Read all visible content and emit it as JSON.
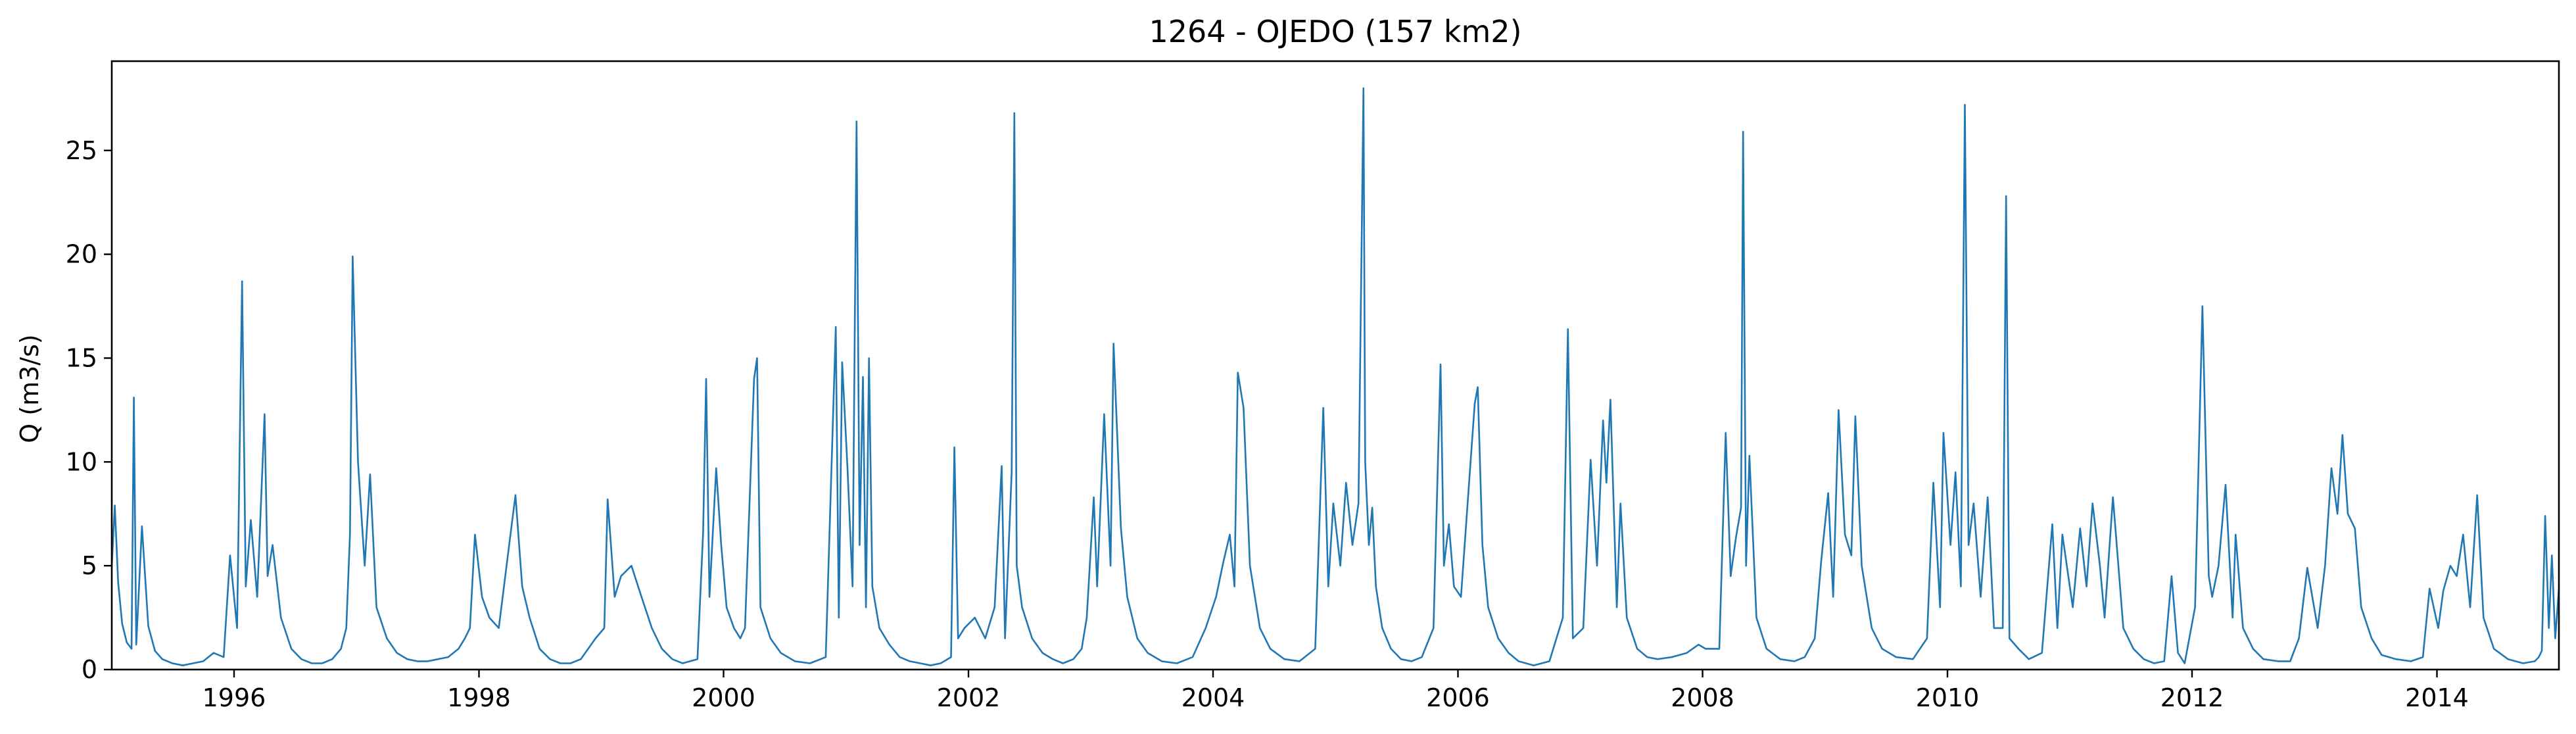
{
  "chart_data": {
    "type": "line",
    "title": "1264 - OJEDO (157 km2)",
    "xlabel": "",
    "ylabel": "Q (m3/s)",
    "xlim": [
      "1995-01-01",
      "2014-12-31"
    ],
    "ylim": [
      0,
      29.3
    ],
    "grid": false,
    "x_ticks": [
      "1996",
      "1998",
      "2000",
      "2002",
      "2004",
      "2006",
      "2008",
      "2010",
      "2012",
      "2014"
    ],
    "y_ticks": [
      "0",
      "5",
      "10",
      "15",
      "20",
      "25"
    ],
    "series": [
      {
        "color": "#1f77b4",
        "x": [
          "1995-01-01",
          "1995-01-10",
          "1995-01-20",
          "1995-02-01",
          "1995-02-15",
          "1995-03-01",
          "1995-03-08",
          "1995-03-15",
          "1995-04-01",
          "1995-04-20",
          "1995-05-10",
          "1995-06-01",
          "1995-07-01",
          "1995-08-01",
          "1995-09-01",
          "1995-10-01",
          "1995-11-01",
          "1995-12-01",
          "1995-12-20",
          "1996-01-10",
          "1996-01-25",
          "1996-02-05",
          "1996-02-20",
          "1996-03-10",
          "1996-04-01",
          "1996-04-10",
          "1996-04-25",
          "1996-05-20",
          "1996-06-20",
          "1996-07-20",
          "1996-08-20",
          "1996-09-20",
          "1996-10-20",
          "1996-11-15",
          "1996-12-01",
          "1996-12-12",
          "1996-12-20",
          "1997-01-05",
          "1997-01-25",
          "1997-02-10",
          "1997-03-01",
          "1997-04-01",
          "1997-05-01",
          "1997-06-01",
          "1997-07-01",
          "1997-08-01",
          "1997-09-01",
          "1997-10-01",
          "1997-11-01",
          "1997-11-20",
          "1997-12-05",
          "1997-12-20",
          "1998-01-10",
          "1998-02-01",
          "1998-03-01",
          "1998-04-01",
          "1998-04-20",
          "1998-05-10",
          "1998-06-01",
          "1998-07-01",
          "1998-08-01",
          "1998-09-01",
          "1998-10-01",
          "1998-11-01",
          "1998-12-15",
          "1999-01-10",
          "1999-01-20",
          "1999-02-10",
          "1999-03-01",
          "1999-04-01",
          "1999-05-01",
          "1999-06-01",
          "1999-07-01",
          "1999-08-01",
          "1999-09-01",
          "1999-10-15",
          "1999-11-01",
          "1999-11-10",
          "1999-11-20",
          "1999-12-10",
          "1999-12-25",
          "2000-01-10",
          "2000-02-01",
          "2000-02-20",
          "2000-03-05",
          "2000-04-01",
          "2000-04-10",
          "2000-04-20",
          "2000-05-20",
          "2000-06-20",
          "2000-08-01",
          "2000-09-15",
          "2000-11-01",
          "2000-12-01",
          "2000-12-10",
          "2000-12-20",
          "2001-01-05",
          "2001-01-20",
          "2001-02-01",
          "2001-02-10",
          "2001-02-20",
          "2001-03-01",
          "2001-03-10",
          "2001-03-20",
          "2001-04-10",
          "2001-05-10",
          "2001-06-10",
          "2001-07-10",
          "2001-08-10",
          "2001-09-10",
          "2001-10-10",
          "2001-11-10",
          "2001-11-20",
          "2001-12-01",
          "2001-12-20",
          "2002-01-20",
          "2002-02-20",
          "2002-03-20",
          "2002-04-10",
          "2002-04-20",
          "2002-05-10",
          "2002-05-18",
          "2002-05-25",
          "2002-06-10",
          "2002-07-10",
          "2002-08-10",
          "2002-09-10",
          "2002-10-10",
          "2002-11-10",
          "2002-12-05",
          "2002-12-20",
          "2003-01-10",
          "2003-01-20",
          "2003-02-10",
          "2003-03-01",
          "2003-03-10",
          "2003-04-01",
          "2003-04-20",
          "2003-05-20",
          "2003-06-20",
          "2003-08-01",
          "2003-09-15",
          "2003-11-01",
          "2003-12-10",
          "2004-01-10",
          "2004-02-01",
          "2004-02-20",
          "2004-03-05",
          "2004-03-15",
          "2004-04-01",
          "2004-04-20",
          "2004-05-20",
          "2004-06-20",
          "2004-08-01",
          "2004-09-15",
          "2004-11-01",
          "2004-11-25",
          "2004-12-10",
          "2004-12-25",
          "2005-01-15",
          "2005-02-01",
          "2005-02-20",
          "2005-03-10",
          "2005-03-25",
          "2005-03-30",
          "2005-04-10",
          "2005-04-20",
          "2005-05-01",
          "2005-05-20",
          "2005-06-15",
          "2005-07-15",
          "2005-08-15",
          "2005-09-15",
          "2005-10-20",
          "2005-11-10",
          "2005-11-20",
          "2005-12-05",
          "2005-12-20",
          "2006-01-10",
          "2006-02-01",
          "2006-02-20",
          "2006-03-01",
          "2006-03-15",
          "2006-04-01",
          "2006-05-01",
          "2006-06-01",
          "2006-07-01",
          "2006-08-15",
          "2006-10-01",
          "2006-11-10",
          "2006-11-25",
          "2006-12-10",
          "2007-01-10",
          "2007-02-01",
          "2007-02-20",
          "2007-03-10",
          "2007-03-20",
          "2007-04-01",
          "2007-04-20",
          "2007-05-01",
          "2007-05-20",
          "2007-06-20",
          "2007-07-20",
          "2007-08-20",
          "2007-10-01",
          "2007-11-15",
          "2007-12-20",
          "2008-01-10",
          "2008-02-20",
          "2008-03-10",
          "2008-03-25",
          "2008-04-10",
          "2008-04-25",
          "2008-05-01",
          "2008-05-10",
          "2008-05-20",
          "2008-06-10",
          "2008-07-10",
          "2008-08-20",
          "2008-10-01",
          "2008-11-01",
          "2008-12-01",
          "2008-12-20",
          "2009-01-10",
          "2009-01-25",
          "2009-02-10",
          "2009-03-01",
          "2009-03-20",
          "2009-04-01",
          "2009-04-20",
          "2009-05-20",
          "2009-06-20",
          "2009-08-01",
          "2009-09-20",
          "2009-11-01",
          "2009-11-20",
          "2009-12-10",
          "2009-12-20",
          "2010-01-10",
          "2010-01-25",
          "2010-02-10",
          "2010-02-22",
          "2010-03-05",
          "2010-03-20",
          "2010-04-10",
          "2010-05-01",
          "2010-05-20",
          "2010-06-15",
          "2010-06-25",
          "2010-07-05",
          "2010-08-01",
          "2010-09-01",
          "2010-10-10",
          "2010-11-10",
          "2010-11-25",
          "2010-12-10",
          "2011-01-10",
          "2011-02-01",
          "2011-02-20",
          "2011-03-10",
          "2011-04-01",
          "2011-04-15",
          "2011-05-10",
          "2011-06-10",
          "2011-07-10",
          "2011-08-10",
          "2011-09-10",
          "2011-10-10",
          "2011-11-01",
          "2011-11-20",
          "2011-12-10",
          "2012-01-10",
          "2012-02-01",
          "2012-02-20",
          "2012-03-01",
          "2012-03-20",
          "2012-04-10",
          "2012-05-01",
          "2012-05-10",
          "2012-06-01",
          "2012-07-01",
          "2012-08-01",
          "2012-09-15",
          "2012-10-20",
          "2012-11-15",
          "2012-12-10",
          "2013-01-10",
          "2013-02-01",
          "2013-02-20",
          "2013-03-10",
          "2013-03-25",
          "2013-04-10",
          "2013-05-01",
          "2013-05-20",
          "2013-06-20",
          "2013-07-20",
          "2013-09-01",
          "2013-10-15",
          "2013-11-20",
          "2013-12-10",
          "2014-01-05",
          "2014-01-20",
          "2014-02-10",
          "2014-03-01",
          "2014-03-20",
          "2014-04-10",
          "2014-05-01",
          "2014-05-20",
          "2014-06-20",
          "2014-08-01",
          "2014-09-15",
          "2014-10-20",
          "2014-11-01",
          "2014-11-10",
          "2014-11-20",
          "2014-12-01",
          "2014-12-10",
          "2014-12-20",
          "2014-12-31"
        ],
        "y": [
          5.0,
          7.9,
          4.2,
          2.2,
          1.3,
          1.0,
          13.1,
          1.2,
          6.9,
          2.1,
          0.9,
          0.5,
          0.3,
          0.2,
          0.3,
          0.4,
          0.8,
          0.6,
          5.5,
          2.0,
          18.7,
          4.0,
          7.2,
          3.5,
          12.3,
          4.5,
          6.0,
          2.5,
          1.0,
          0.5,
          0.3,
          0.3,
          0.5,
          1.0,
          2.0,
          6.5,
          19.9,
          10.0,
          5.0,
          9.4,
          3.0,
          1.5,
          0.8,
          0.5,
          0.4,
          0.4,
          0.5,
          0.6,
          1.0,
          1.5,
          2.0,
          6.5,
          3.5,
          2.5,
          2.0,
          6.0,
          8.4,
          4.0,
          2.5,
          1.0,
          0.5,
          0.3,
          0.3,
          0.5,
          1.5,
          2.0,
          8.2,
          3.5,
          4.5,
          5.0,
          3.5,
          2.0,
          1.0,
          0.5,
          0.3,
          0.5,
          6.6,
          14.0,
          3.5,
          9.7,
          6.0,
          3.0,
          2.0,
          1.5,
          2.0,
          14.0,
          15.0,
          3.0,
          1.5,
          0.8,
          0.4,
          0.3,
          0.6,
          16.5,
          2.5,
          14.8,
          9.7,
          4.0,
          26.4,
          6.0,
          14.1,
          3.0,
          15.0,
          4.0,
          2.0,
          1.2,
          0.6,
          0.4,
          0.3,
          0.2,
          0.3,
          0.6,
          10.7,
          1.5,
          2.0,
          2.5,
          1.5,
          3.0,
          9.8,
          1.5,
          9.5,
          26.8,
          5.0,
          3.0,
          1.5,
          0.8,
          0.5,
          0.3,
          0.5,
          1.0,
          2.5,
          8.3,
          4.0,
          12.3,
          5.0,
          15.7,
          6.8,
          3.5,
          1.5,
          0.8,
          0.4,
          0.3,
          0.6,
          2.0,
          3.5,
          5.2,
          6.5,
          4.0,
          14.3,
          12.6,
          5.0,
          2.0,
          1.0,
          0.5,
          0.4,
          1.0,
          12.6,
          4.0,
          8.0,
          5.0,
          9.0,
          6.0,
          8.0,
          28.0,
          10.0,
          6.0,
          7.8,
          4.0,
          2.0,
          1.0,
          0.5,
          0.4,
          0.6,
          2.0,
          14.7,
          5.0,
          7.0,
          4.0,
          3.5,
          8.5,
          12.8,
          13.6,
          6.0,
          3.0,
          1.5,
          0.8,
          0.4,
          0.2,
          0.4,
          2.5,
          16.4,
          1.5,
          2.0,
          10.1,
          5.0,
          12.0,
          9.0,
          13.0,
          3.0,
          8.0,
          2.5,
          1.0,
          0.6,
          0.5,
          0.6,
          0.8,
          1.2,
          1.0,
          1.0,
          11.4,
          4.5,
          6.4,
          7.8,
          25.9,
          5.0,
          10.3,
          2.5,
          1.0,
          0.5,
          0.4,
          0.6,
          1.5,
          5.2,
          8.5,
          3.5,
          12.5,
          6.5,
          5.5,
          12.2,
          5.0,
          2.0,
          1.0,
          0.6,
          0.5,
          1.5,
          9.0,
          3.0,
          11.4,
          6.0,
          9.5,
          4.0,
          27.2,
          6.0,
          8.0,
          3.5,
          8.3,
          2.0,
          2.0,
          22.8,
          1.5,
          1.0,
          0.5,
          0.8,
          7.0,
          2.0,
          6.5,
          3.0,
          6.8,
          4.0,
          8.0,
          5.0,
          2.5,
          8.3,
          2.0,
          1.0,
          0.5,
          0.3,
          0.4,
          4.5,
          0.8,
          0.3,
          3.0,
          17.5,
          4.5,
          3.5,
          5.0,
          8.9,
          2.5,
          6.5,
          2.0,
          1.0,
          0.5,
          0.4,
          0.4,
          1.5,
          4.9,
          2.0,
          5.0,
          9.7,
          7.5,
          11.3,
          7.5,
          6.8,
          3.0,
          1.5,
          0.7,
          0.5,
          0.4,
          0.6,
          3.9,
          2.0,
          3.8,
          5.0,
          4.5,
          6.5,
          3.0,
          8.4,
          2.5,
          1.0,
          0.5,
          0.3,
          0.4,
          0.6,
          0.9,
          7.4,
          2.0,
          5.5,
          1.5,
          3.9
        ]
      }
    ]
  }
}
